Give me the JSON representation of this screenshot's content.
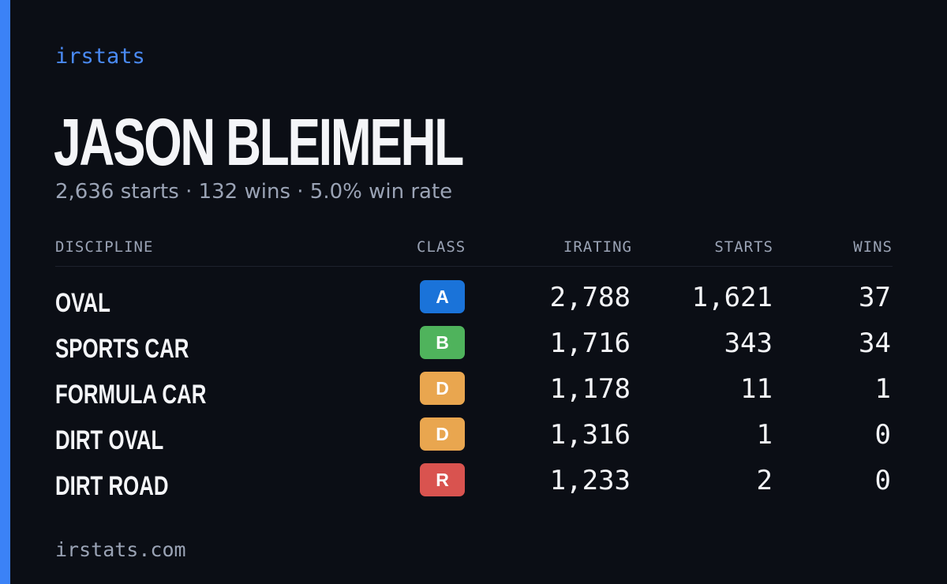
{
  "brand": {
    "logo_text": "irstats",
    "footer_url": "irstats.com",
    "accent_color": "#3b82f6"
  },
  "driver": {
    "name": "JASON BLEIMEHL",
    "summary": "2,636 starts · 132 wins · 5.0% win rate"
  },
  "table": {
    "headers": {
      "discipline": "DISCIPLINE",
      "class": "CLASS",
      "irating": "IRATING",
      "starts": "STARTS",
      "wins": "WINS"
    },
    "rows": [
      {
        "discipline": "OVAL",
        "class": "A",
        "class_color": "#1a73d9",
        "irating": "2,788",
        "starts": "1,621",
        "wins": "37"
      },
      {
        "discipline": "SPORTS CAR",
        "class": "B",
        "class_color": "#4fb35c",
        "irating": "1,716",
        "starts": "343",
        "wins": "34"
      },
      {
        "discipline": "FORMULA CAR",
        "class": "D",
        "class_color": "#e9a64f",
        "irating": "1,178",
        "starts": "11",
        "wins": "1"
      },
      {
        "discipline": "DIRT OVAL",
        "class": "D",
        "class_color": "#e9a64f",
        "irating": "1,316",
        "starts": "1",
        "wins": "0"
      },
      {
        "discipline": "DIRT ROAD",
        "class": "R",
        "class_color": "#d9534f",
        "irating": "1,233",
        "starts": "2",
        "wins": "0"
      }
    ]
  }
}
